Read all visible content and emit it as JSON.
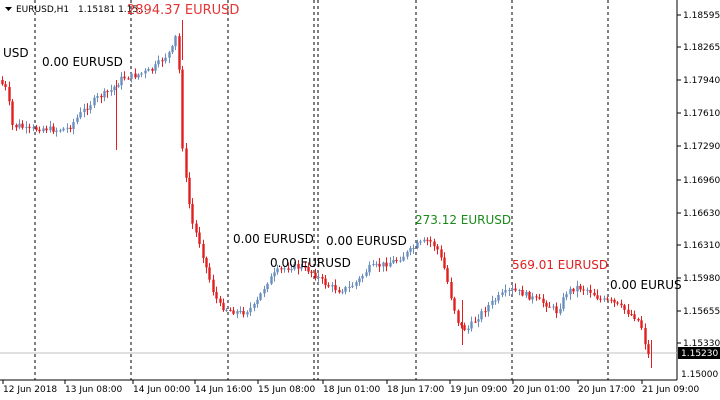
{
  "header": {
    "symbol_label": "EURUSD,H1",
    "ohlc": "1.15181 1.15...",
    "overlay_red": "2894.37 EURUSD"
  },
  "price_axis": {
    "ticks": [
      "1.18595",
      "1.18265",
      "1.17940",
      "1.17610",
      "1.17290",
      "1.16960",
      "1.16630",
      "1.16310",
      "1.15980",
      "1.15655",
      "1.15330"
    ],
    "current": "1.15230",
    "bottom": "1.15000"
  },
  "time_axis": {
    "labels": [
      "12 Jun 2018",
      "13 Jun 08:00",
      "14 Jun 00:00",
      "14 Jun 16:00",
      "15 Jun 08:00",
      "18 Jun 01:00",
      "18 Jun 17:00",
      "19 Jun 09:00",
      "20 Jun 01:00",
      "20 Jun 17:00",
      "21 Jun 09:00"
    ]
  },
  "annotations": [
    {
      "text": "USD",
      "color": "#000000"
    },
    {
      "text": "0.00 EURUSD",
      "color": "#000000"
    },
    {
      "text": "0.00 EURUSD",
      "color": "#000000"
    },
    {
      "text": "0.00 EURUSD",
      "color": "#000000"
    },
    {
      "text": "0.00 EURUSD",
      "color": "#000000"
    },
    {
      "text": "273.12 EURUSD",
      "color": "#1a8a1a"
    },
    {
      "text": "569.01 EURUSD",
      "color": "#e02020"
    },
    {
      "text": "0.00 EURUS",
      "color": "#000000"
    }
  ],
  "colors": {
    "bull": "#6a8fbf",
    "bear": "#e02020",
    "grid": "#000000",
    "current_line": "#c0c0c0",
    "current_label_bg": "#000000"
  },
  "chart_data": {
    "type": "candlestick",
    "ylim": [
      1.15,
      1.186
    ],
    "x_categories": [
      "12 Jun 2018",
      "13 Jun 08:00",
      "14 Jun 00:00",
      "14 Jun 16:00",
      "15 Jun 08:00",
      "18 Jun 01:00",
      "18 Jun 17:00",
      "19 Jun 09:00",
      "20 Jun 01:00",
      "20 Jun 17:00",
      "21 Jun 09:00"
    ],
    "close_series": [
      1.1785,
      1.177,
      1.1755,
      1.176,
      1.177,
      1.179,
      1.1805,
      1.1815,
      1.1825,
      1.1835,
      1.184,
      1.182,
      1.17,
      1.168,
      1.165,
      1.16,
      1.159,
      1.158,
      1.1605,
      1.1615,
      1.1605,
      1.1598,
      1.16,
      1.161,
      1.1615,
      1.1608,
      1.1618,
      1.1595,
      1.157,
      1.156,
      1.158,
      1.1585,
      1.1578,
      1.159,
      1.158,
      1.156,
      1.1575,
      1.155,
      1.154,
      1.153,
      1.1525
    ]
  }
}
